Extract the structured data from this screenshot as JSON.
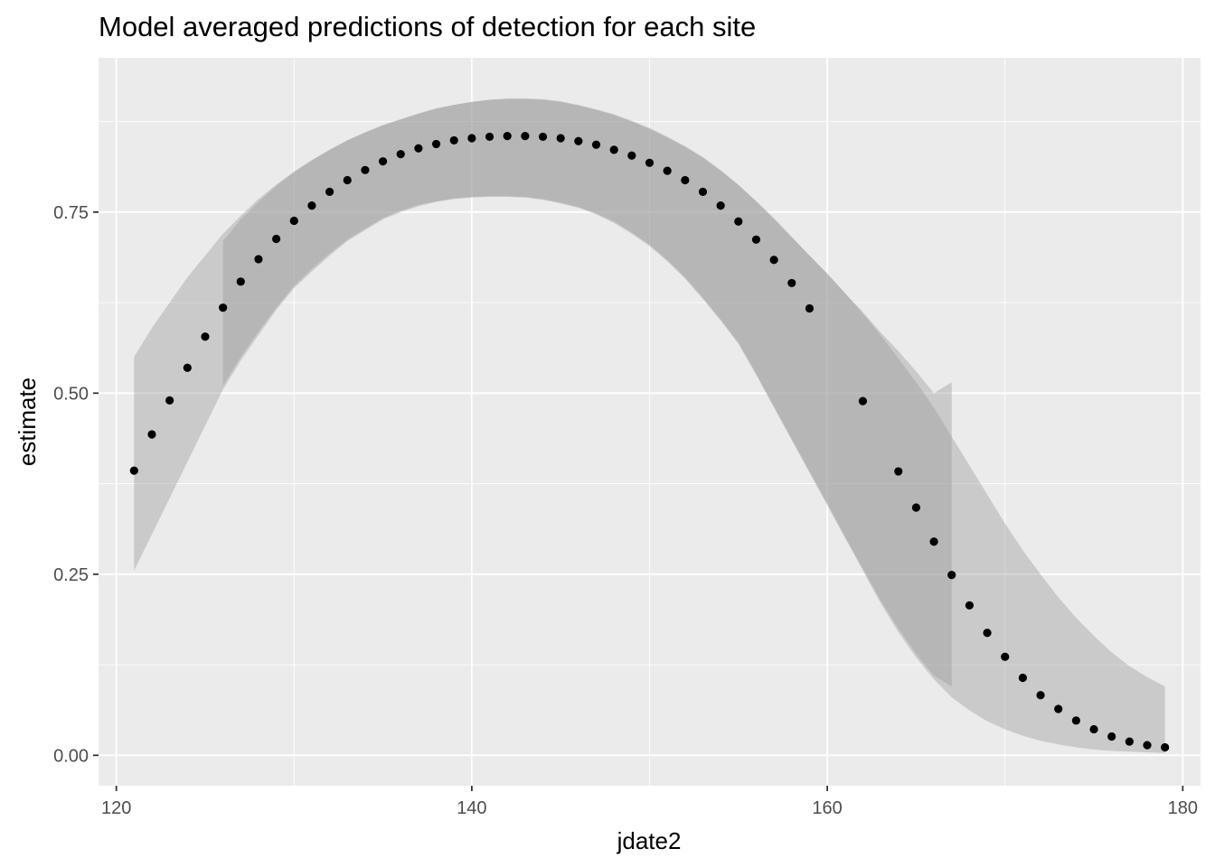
{
  "chart_data": {
    "type": "scatter",
    "title": "Model averaged predictions of detection for each site",
    "xlabel": "jdate2",
    "ylabel": "estimate",
    "xlim": [
      119,
      181
    ],
    "ylim": [
      -0.042,
      0.963
    ],
    "x_ticks": [
      120,
      140,
      160,
      180
    ],
    "y_ticks": [
      0,
      0.25,
      0.5,
      0.75
    ],
    "x_tick_labels": [
      "120",
      "140",
      "160",
      "180"
    ],
    "y_tick_labels": [
      "0.00",
      "0.25",
      "0.50",
      "0.75"
    ],
    "grid": true,
    "legend": "none",
    "colors": {
      "panel": "#ebebeb",
      "grid": "#ffffff",
      "point": "#000000",
      "ribbon": "#999999",
      "tick_text": "#4d4d4d"
    },
    "ribbons": [
      {
        "x": [
          121,
          122,
          123,
          124,
          125,
          126,
          127,
          128,
          129,
          130,
          131,
          132,
          133,
          134,
          135,
          136,
          137,
          138,
          139,
          140,
          141,
          142,
          143,
          144,
          145,
          146,
          147,
          148,
          149,
          150,
          151,
          152,
          153,
          154,
          155,
          156,
          157,
          158,
          159,
          160,
          161,
          162,
          163,
          164,
          165,
          166,
          167,
          168,
          169,
          170,
          171,
          172,
          173,
          174,
          175,
          176,
          177,
          178,
          179
        ],
        "lower": [
          0.255,
          0.305,
          0.355,
          0.405,
          0.455,
          0.505,
          0.545,
          0.58,
          0.615,
          0.645,
          0.668,
          0.69,
          0.71,
          0.725,
          0.74,
          0.75,
          0.758,
          0.764,
          0.768,
          0.77,
          0.771,
          0.771,
          0.77,
          0.767,
          0.762,
          0.756,
          0.747,
          0.735,
          0.72,
          0.703,
          0.682,
          0.658,
          0.63,
          0.6,
          0.568,
          0.525,
          0.48,
          0.435,
          0.39,
          0.345,
          0.3,
          0.255,
          0.21,
          0.17,
          0.135,
          0.105,
          0.08,
          0.062,
          0.047,
          0.036,
          0.027,
          0.02,
          0.015,
          0.011,
          0.008,
          0.006,
          0.005,
          0.004,
          0.003
        ],
        "upper": [
          0.55,
          0.59,
          0.625,
          0.66,
          0.69,
          0.72,
          0.745,
          0.768,
          0.788,
          0.806,
          0.822,
          0.836,
          0.849,
          0.86,
          0.87,
          0.878,
          0.886,
          0.893,
          0.898,
          0.902,
          0.905,
          0.906,
          0.906,
          0.905,
          0.902,
          0.897,
          0.891,
          0.884,
          0.875,
          0.865,
          0.853,
          0.84,
          0.825,
          0.807,
          0.787,
          0.765,
          0.74,
          0.715,
          0.69,
          0.665,
          0.638,
          0.61,
          0.58,
          0.548,
          0.515,
          0.48,
          0.44,
          0.4,
          0.36,
          0.32,
          0.283,
          0.25,
          0.218,
          0.19,
          0.165,
          0.142,
          0.123,
          0.108,
          0.095
        ]
      },
      {
        "x": [
          126,
          127,
          128,
          129,
          130,
          131,
          132,
          133,
          134,
          135,
          136,
          137,
          138,
          139,
          140,
          141,
          142,
          143,
          144,
          145,
          146,
          147,
          148,
          149,
          150,
          151,
          152,
          153,
          154,
          155,
          156,
          157,
          158,
          159,
          160,
          161,
          162,
          163,
          164,
          165,
          166,
          167
        ],
        "lower": [
          0.51,
          0.55,
          0.585,
          0.618,
          0.648,
          0.672,
          0.693,
          0.712,
          0.727,
          0.742,
          0.752,
          0.76,
          0.765,
          0.769,
          0.771,
          0.772,
          0.772,
          0.771,
          0.768,
          0.763,
          0.757,
          0.748,
          0.737,
          0.722,
          0.705,
          0.684,
          0.66,
          0.632,
          0.602,
          0.57,
          0.527,
          0.482,
          0.437,
          0.392,
          0.348,
          0.302,
          0.258,
          0.214,
          0.175,
          0.14,
          0.11,
          0.095
        ],
        "upper": [
          0.71,
          0.74,
          0.764,
          0.786,
          0.805,
          0.821,
          0.836,
          0.849,
          0.86,
          0.87,
          0.878,
          0.886,
          0.893,
          0.898,
          0.902,
          0.905,
          0.907,
          0.907,
          0.906,
          0.903,
          0.898,
          0.892,
          0.885,
          0.876,
          0.866,
          0.854,
          0.841,
          0.826,
          0.808,
          0.788,
          0.765,
          0.742,
          0.716,
          0.69,
          0.665,
          0.638,
          0.612,
          0.584,
          0.558,
          0.53,
          0.5,
          0.515
        ]
      }
    ],
    "points": {
      "x": [
        121,
        122,
        123,
        124,
        125,
        126,
        127,
        128,
        129,
        130,
        131,
        132,
        133,
        134,
        135,
        136,
        137,
        138,
        139,
        140,
        141,
        142,
        143,
        144,
        145,
        146,
        147,
        148,
        149,
        150,
        151,
        152,
        153,
        154,
        155,
        156,
        157,
        158,
        159,
        162,
        164,
        165,
        166,
        167,
        168,
        169,
        170,
        171,
        172,
        173,
        174,
        175,
        176,
        177,
        178,
        179
      ],
      "y": [
        0.393,
        0.443,
        0.49,
        0.535,
        0.578,
        0.618,
        0.654,
        0.685,
        0.713,
        0.738,
        0.759,
        0.778,
        0.794,
        0.808,
        0.82,
        0.83,
        0.838,
        0.844,
        0.849,
        0.852,
        0.854,
        0.855,
        0.855,
        0.854,
        0.852,
        0.848,
        0.843,
        0.836,
        0.828,
        0.818,
        0.807,
        0.794,
        0.778,
        0.759,
        0.737,
        0.712,
        0.684,
        0.652,
        0.617,
        0.489,
        0.392,
        0.342,
        0.295,
        0.249,
        0.207,
        0.169,
        0.136,
        0.107,
        0.083,
        0.064,
        0.048,
        0.036,
        0.026,
        0.019,
        0.014,
        0.011
      ]
    }
  }
}
